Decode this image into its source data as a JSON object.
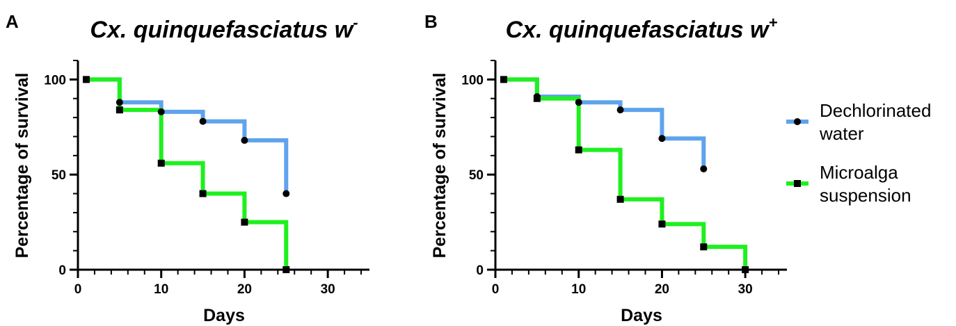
{
  "colors": {
    "water": "#5fa3ec",
    "alga": "#1ef01e",
    "axis": "#000000"
  },
  "legend": [
    {
      "lines": [
        "Dechlorinated",
        "water"
      ],
      "marker": "circle",
      "color": "#5fa3ec"
    },
    {
      "lines": [
        "Microalga",
        "suspension"
      ],
      "marker": "square",
      "color": "#1ef01e"
    }
  ],
  "chart_data": [
    {
      "type": "line",
      "step": true,
      "panel": "A",
      "title": "Cx. quinquefasciatus w",
      "title_superscript": "-",
      "xlabel": "Days",
      "ylabel": "Percentage of survival",
      "xlim": [
        0,
        35
      ],
      "ylim": [
        0,
        110
      ],
      "xticks": [
        0,
        10,
        20,
        30
      ],
      "yticks": [
        0,
        50,
        100
      ],
      "series": [
        {
          "name": "Dechlorinated water",
          "color": "#5fa3ec",
          "marker": "circle",
          "x": [
            1,
            5,
            10,
            15,
            20,
            25
          ],
          "y": [
            100,
            88,
            83,
            78,
            68,
            40
          ]
        },
        {
          "name": "Microalga suspension",
          "color": "#1ef01e",
          "marker": "square",
          "x": [
            1,
            5,
            10,
            15,
            20,
            25
          ],
          "y": [
            100,
            84,
            56,
            40,
            25,
            0
          ]
        }
      ]
    },
    {
      "type": "line",
      "step": true,
      "panel": "B",
      "title": "Cx. quinquefasciatus w",
      "title_superscript": "+",
      "xlabel": "Days",
      "ylabel": "Percentage of survival",
      "xlim": [
        0,
        35
      ],
      "ylim": [
        0,
        110
      ],
      "xticks": [
        0,
        10,
        20,
        30
      ],
      "yticks": [
        0,
        50,
        100
      ],
      "series": [
        {
          "name": "Dechlorinated water",
          "color": "#5fa3ec",
          "marker": "circle",
          "x": [
            1,
            5,
            10,
            15,
            20,
            25
          ],
          "y": [
            100,
            91,
            88,
            84,
            69,
            53
          ]
        },
        {
          "name": "Microalga suspension",
          "color": "#1ef01e",
          "marker": "square",
          "x": [
            1,
            5,
            10,
            15,
            20,
            25,
            30
          ],
          "y": [
            100,
            90,
            63,
            37,
            24,
            12,
            0
          ]
        }
      ]
    }
  ]
}
